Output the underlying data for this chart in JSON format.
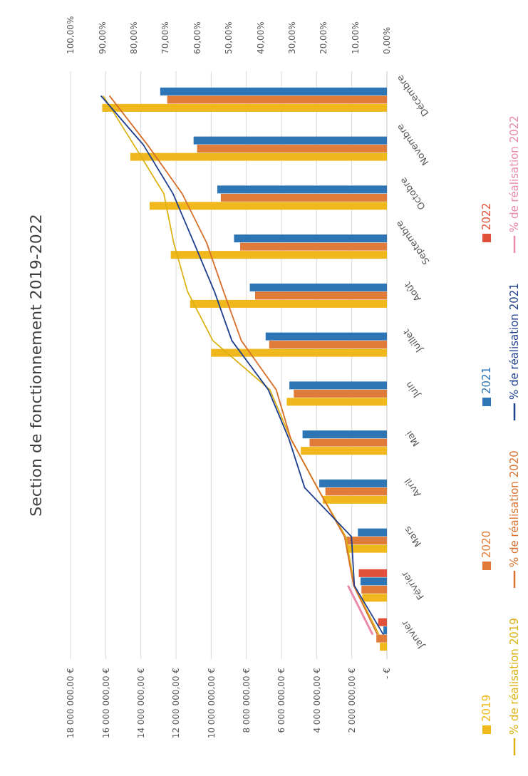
{
  "chart_data": {
    "type": "bar",
    "orientation": "horizontal",
    "title": "Section de fonctionnement  2019-2022",
    "categories": [
      "Décembre",
      "Novembre",
      "Octobre",
      "Septembre",
      "Août",
      "Juillet",
      "Juin",
      "Mai",
      "Avril",
      "Mars",
      "Février",
      "Janvier"
    ],
    "series": [
      {
        "name": "2019",
        "color": "#f0b81c",
        "values": [
          16200000,
          14600000,
          13500000,
          12300000,
          11200000,
          10000000,
          5700000,
          4900000,
          3650000,
          2300000,
          1400000,
          400000
        ]
      },
      {
        "name": "2020",
        "color": "#e07b39",
        "values": [
          12500000,
          10800000,
          9450000,
          8350000,
          7500000,
          6700000,
          5300000,
          4400000,
          3500000,
          2300000,
          1450000,
          600000
        ]
      },
      {
        "name": "2021",
        "color": "#2e75b6",
        "values": [
          12900000,
          11000000,
          9650000,
          8700000,
          7800000,
          6900000,
          5550000,
          4800000,
          3850000,
          1650000,
          1500000,
          200000
        ]
      },
      {
        "name": "2022",
        "color": "#e0503a",
        "values": [
          null,
          null,
          null,
          null,
          null,
          null,
          null,
          null,
          null,
          null,
          1600000,
          500000
        ]
      },
      {
        "name": "% de réalisation 2019",
        "type": "line",
        "axis": "x2",
        "color": "#dcb212",
        "values": [
          89.7,
          80,
          70.5,
          67.4,
          63,
          55,
          37,
          30.4,
          22,
          13,
          10.3,
          2.5
        ]
      },
      {
        "name": "% de réalisation 2020",
        "type": "line",
        "axis": "x2",
        "color": "#d8702e",
        "values": [
          87.7,
          75.7,
          64.7,
          57,
          51.6,
          46,
          35,
          30.4,
          22,
          13.4,
          10.5,
          3
        ]
      },
      {
        "name": "% de réalisation 2021",
        "type": "line",
        "axis": "x2",
        "color": "#1f3f8f",
        "values": [
          90.4,
          77,
          67.6,
          61,
          54.5,
          49,
          37.5,
          31,
          26,
          11.2,
          10.3,
          1.1
        ]
      },
      {
        "name": "% de réalisation 2022",
        "type": "line",
        "axis": "x2",
        "color": "#e98aa8",
        "values": [
          null,
          null,
          null,
          null,
          null,
          null,
          null,
          null,
          null,
          null,
          12.3,
          4.5
        ]
      }
    ],
    "xlim": [
      18000000,
      0
    ],
    "xticks": [
      {
        "value": 18000000,
        "label": "18 000 000,00 €"
      },
      {
        "value": 16000000,
        "label": "16 000 000,00 €"
      },
      {
        "value": 14000000,
        "label": "14 000 000,00 €"
      },
      {
        "value": 12000000,
        "label": "12 000 000,00 €"
      },
      {
        "value": 10000000,
        "label": "10 000 000,00 €"
      },
      {
        "value": 8000000,
        "label": "8 000 000,00 €"
      },
      {
        "value": 6000000,
        "label": "6 000 000,00 €"
      },
      {
        "value": 4000000,
        "label": "4 000 000,00 €"
      },
      {
        "value": 2000000,
        "label": "2 000 000,00 €"
      },
      {
        "value": 0,
        "label": "-   €"
      }
    ],
    "x2lim": [
      100,
      0
    ],
    "x2ticks": [
      {
        "value": 100,
        "label": "100,00%"
      },
      {
        "value": 90,
        "label": "90,00%"
      },
      {
        "value": 80,
        "label": "80,00%"
      },
      {
        "value": 70,
        "label": "70,00%"
      },
      {
        "value": 60,
        "label": "60,00%"
      },
      {
        "value": 50,
        "label": "50,00%"
      },
      {
        "value": 40,
        "label": "40,00%"
      },
      {
        "value": 30,
        "label": "30,00%"
      },
      {
        "value": 20,
        "label": "20,00%"
      },
      {
        "value": 10,
        "label": "10,00%"
      },
      {
        "value": 0,
        "label": "0,00%"
      }
    ],
    "grid": "x",
    "legend": "right"
  }
}
